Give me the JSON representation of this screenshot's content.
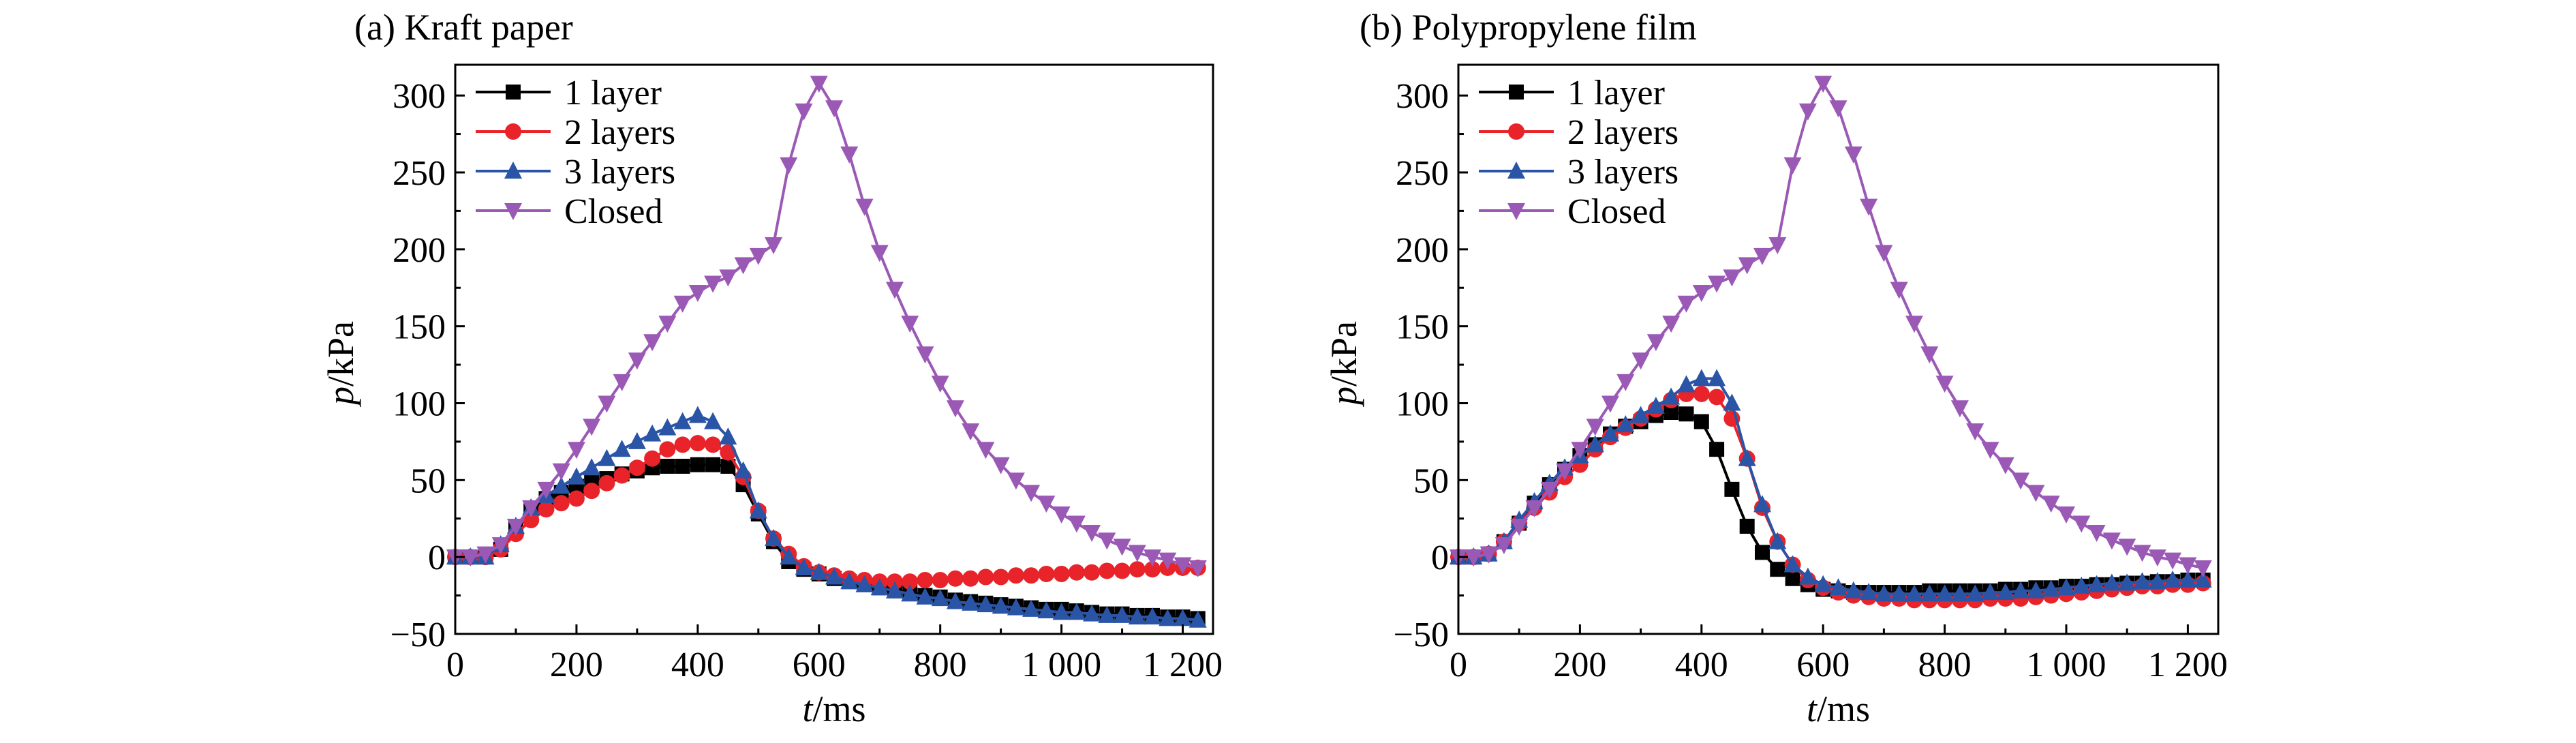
{
  "chart_data": [
    {
      "type": "line",
      "title": "(a) Kraft paper",
      "xlabel_var": "t",
      "xlabel_unit": "/ms",
      "ylabel_var": "p",
      "ylabel_unit": "/kPa",
      "xlim": [
        0,
        1250
      ],
      "ylim": [
        -50,
        320
      ],
      "xticks": [
        0,
        200,
        400,
        600,
        800,
        1000,
        1200
      ],
      "xtick_labels": [
        "0",
        "200",
        "400",
        "600",
        "800",
        "1 000",
        "1 200"
      ],
      "yticks": [
        -50,
        0,
        50,
        100,
        150,
        200,
        250,
        300
      ],
      "ytick_labels": [
        "−50",
        "0",
        "50",
        "100",
        "150",
        "200",
        "250",
        "300"
      ],
      "grid": false,
      "legend_position": "top-left",
      "series": [
        {
          "name": "1 layer",
          "color": "#000000",
          "marker": "square",
          "x": [
            0,
            25,
            50,
            75,
            100,
            125,
            150,
            175,
            200,
            225,
            250,
            275,
            300,
            325,
            350,
            375,
            400,
            425,
            450,
            475,
            500,
            525,
            550,
            575,
            600,
            625,
            650,
            675,
            700,
            725,
            750,
            775,
            800,
            825,
            850,
            875,
            900,
            925,
            950,
            975,
            1000,
            1025,
            1050,
            1075,
            1100,
            1125,
            1150,
            1175,
            1200,
            1225
          ],
          "y": [
            0,
            0,
            0,
            5,
            18,
            30,
            38,
            42,
            46,
            49,
            51,
            54,
            56,
            58,
            59,
            59,
            60,
            60,
            59,
            47,
            28,
            10,
            -3,
            -8,
            -11,
            -14,
            -16,
            -18,
            -20,
            -22,
            -23,
            -25,
            -26,
            -28,
            -29,
            -30,
            -31,
            -32,
            -33,
            -34,
            -34,
            -35,
            -36,
            -37,
            -37,
            -38,
            -38,
            -39,
            -39,
            -40
          ]
        },
        {
          "name": "2 layers",
          "color": "#e8232a",
          "marker": "circle",
          "x": [
            0,
            25,
            50,
            75,
            100,
            125,
            150,
            175,
            200,
            225,
            250,
            275,
            300,
            325,
            350,
            375,
            400,
            425,
            450,
            475,
            500,
            525,
            550,
            575,
            600,
            625,
            650,
            675,
            700,
            725,
            750,
            775,
            800,
            825,
            850,
            875,
            900,
            925,
            950,
            975,
            1000,
            1025,
            1050,
            1075,
            1100,
            1125,
            1150,
            1175,
            1200,
            1225
          ],
          "y": [
            0,
            0,
            0,
            5,
            15,
            24,
            31,
            35,
            38,
            43,
            48,
            53,
            58,
            64,
            70,
            73,
            74,
            73,
            68,
            52,
            30,
            12,
            2,
            -6,
            -10,
            -12,
            -14,
            -15,
            -16,
            -16,
            -16,
            -15,
            -15,
            -14,
            -14,
            -13,
            -13,
            -12,
            -12,
            -11,
            -11,
            -10,
            -10,
            -9,
            -9,
            -8,
            -8,
            -7,
            -7,
            -7
          ]
        },
        {
          "name": "3 layers",
          "color": "#2a55a6",
          "marker": "triangle-up",
          "x": [
            0,
            25,
            50,
            75,
            100,
            125,
            150,
            175,
            200,
            225,
            250,
            275,
            300,
            325,
            350,
            375,
            400,
            425,
            450,
            475,
            500,
            525,
            550,
            575,
            600,
            625,
            650,
            675,
            700,
            725,
            750,
            775,
            800,
            825,
            850,
            875,
            900,
            925,
            950,
            975,
            1000,
            1025,
            1050,
            1075,
            1100,
            1125,
            1150,
            1175,
            1200,
            1225
          ],
          "y": [
            0,
            0,
            0,
            8,
            20,
            32,
            40,
            46,
            52,
            58,
            64,
            70,
            75,
            80,
            84,
            88,
            92,
            88,
            78,
            56,
            30,
            12,
            0,
            -7,
            -10,
            -13,
            -16,
            -18,
            -20,
            -22,
            -24,
            -26,
            -27,
            -29,
            -30,
            -31,
            -32,
            -33,
            -34,
            -35,
            -36,
            -36,
            -37,
            -38,
            -38,
            -39,
            -39,
            -40,
            -40,
            -41
          ]
        },
        {
          "name": "Closed",
          "color": "#9b59b6",
          "marker": "triangle-down",
          "x": [
            0,
            25,
            50,
            75,
            100,
            125,
            150,
            175,
            200,
            225,
            250,
            275,
            300,
            325,
            350,
            375,
            400,
            425,
            450,
            475,
            500,
            525,
            550,
            575,
            600,
            625,
            650,
            675,
            700,
            725,
            750,
            775,
            800,
            825,
            850,
            875,
            900,
            925,
            950,
            975,
            1000,
            1025,
            1050,
            1075,
            1100,
            1125,
            1150,
            1175,
            1200,
            1225
          ],
          "y": [
            0,
            0,
            2,
            8,
            20,
            32,
            44,
            56,
            70,
            85,
            100,
            114,
            128,
            140,
            152,
            165,
            172,
            178,
            182,
            190,
            196,
            203,
            255,
            290,
            308,
            292,
            262,
            228,
            198,
            174,
            152,
            132,
            113,
            97,
            82,
            70,
            60,
            50,
            42,
            35,
            28,
            22,
            16,
            11,
            7,
            3,
            0,
            -2,
            -5,
            -7
          ]
        }
      ]
    },
    {
      "type": "line",
      "title": "(b) Polypropylene film",
      "xlabel_var": "t",
      "xlabel_unit": "/ms",
      "ylabel_var": "p",
      "ylabel_unit": "/kPa",
      "xlim": [
        0,
        1250
      ],
      "ylim": [
        -50,
        320
      ],
      "xticks": [
        0,
        200,
        400,
        600,
        800,
        1000,
        1200
      ],
      "xtick_labels": [
        "0",
        "200",
        "400",
        "600",
        "800",
        "1 000",
        "1 200"
      ],
      "yticks": [
        -50,
        0,
        50,
        100,
        150,
        200,
        250,
        300
      ],
      "ytick_labels": [
        "−50",
        "0",
        "50",
        "100",
        "150",
        "200",
        "250",
        "300"
      ],
      "grid": false,
      "legend_position": "top-left",
      "series": [
        {
          "name": "1 layer",
          "color": "#000000",
          "marker": "square",
          "x": [
            0,
            25,
            50,
            75,
            100,
            125,
            150,
            175,
            200,
            225,
            250,
            275,
            300,
            325,
            350,
            375,
            400,
            425,
            450,
            475,
            500,
            525,
            550,
            575,
            600,
            625,
            650,
            675,
            700,
            725,
            750,
            775,
            800,
            825,
            850,
            875,
            900,
            925,
            950,
            975,
            1000,
            1025,
            1050,
            1075,
            1100,
            1125,
            1150,
            1175,
            1200,
            1225
          ],
          "y": [
            0,
            0,
            2,
            10,
            22,
            35,
            47,
            57,
            66,
            73,
            80,
            85,
            88,
            92,
            94,
            93,
            88,
            70,
            44,
            20,
            3,
            -8,
            -14,
            -18,
            -21,
            -22,
            -23,
            -23,
            -23,
            -23,
            -23,
            -22,
            -22,
            -22,
            -22,
            -22,
            -21,
            -21,
            -20,
            -20,
            -19,
            -19,
            -18,
            -18,
            -17,
            -17,
            -16,
            -16,
            -15,
            -15
          ]
        },
        {
          "name": "2 layers",
          "color": "#e8232a",
          "marker": "circle",
          "x": [
            0,
            25,
            50,
            75,
            100,
            125,
            150,
            175,
            200,
            225,
            250,
            275,
            300,
            325,
            350,
            375,
            400,
            425,
            450,
            475,
            500,
            525,
            550,
            575,
            600,
            625,
            650,
            675,
            700,
            725,
            750,
            775,
            800,
            825,
            850,
            875,
            900,
            925,
            950,
            975,
            1000,
            1025,
            1050,
            1075,
            1100,
            1125,
            1150,
            1175,
            1200,
            1225
          ],
          "y": [
            0,
            0,
            2,
            10,
            22,
            32,
            42,
            52,
            60,
            70,
            78,
            84,
            90,
            96,
            102,
            106,
            106,
            104,
            90,
            64,
            32,
            10,
            -5,
            -15,
            -20,
            -23,
            -25,
            -26,
            -27,
            -27,
            -28,
            -28,
            -28,
            -28,
            -28,
            -27,
            -27,
            -27,
            -26,
            -25,
            -24,
            -23,
            -22,
            -21,
            -20,
            -19,
            -19,
            -18,
            -18,
            -17
          ]
        },
        {
          "name": "3 layers",
          "color": "#2a55a6",
          "marker": "triangle-up",
          "x": [
            0,
            25,
            50,
            75,
            100,
            125,
            150,
            175,
            200,
            225,
            250,
            275,
            300,
            325,
            350,
            375,
            400,
            425,
            450,
            475,
            500,
            525,
            550,
            575,
            600,
            625,
            650,
            675,
            700,
            725,
            750,
            775,
            800,
            825,
            850,
            875,
            900,
            925,
            950,
            975,
            1000,
            1025,
            1050,
            1075,
            1100,
            1125,
            1150,
            1175,
            1200,
            1225
          ],
          "y": [
            0,
            0,
            2,
            10,
            24,
            36,
            48,
            58,
            66,
            73,
            80,
            86,
            92,
            98,
            104,
            112,
            116,
            116,
            100,
            64,
            34,
            10,
            -5,
            -13,
            -18,
            -20,
            -22,
            -23,
            -24,
            -24,
            -24,
            -24,
            -24,
            -24,
            -24,
            -23,
            -23,
            -22,
            -22,
            -21,
            -20,
            -19,
            -18,
            -17,
            -17,
            -16,
            -16,
            -15,
            -15,
            -15
          ]
        },
        {
          "name": "Closed",
          "color": "#9b59b6",
          "marker": "triangle-down",
          "x": [
            0,
            25,
            50,
            75,
            100,
            125,
            150,
            175,
            200,
            225,
            250,
            275,
            300,
            325,
            350,
            375,
            400,
            425,
            450,
            475,
            500,
            525,
            550,
            575,
            600,
            625,
            650,
            675,
            700,
            725,
            750,
            775,
            800,
            825,
            850,
            875,
            900,
            925,
            950,
            975,
            1000,
            1025,
            1050,
            1075,
            1100,
            1125,
            1150,
            1175,
            1200,
            1225
          ],
          "y": [
            0,
            0,
            2,
            8,
            20,
            32,
            44,
            56,
            70,
            85,
            100,
            114,
            128,
            140,
            152,
            165,
            172,
            178,
            182,
            190,
            196,
            203,
            255,
            290,
            308,
            292,
            262,
            228,
            198,
            174,
            152,
            132,
            113,
            97,
            82,
            70,
            60,
            50,
            42,
            35,
            28,
            22,
            16,
            11,
            7,
            3,
            0,
            -2,
            -5,
            -7
          ]
        }
      ]
    }
  ]
}
